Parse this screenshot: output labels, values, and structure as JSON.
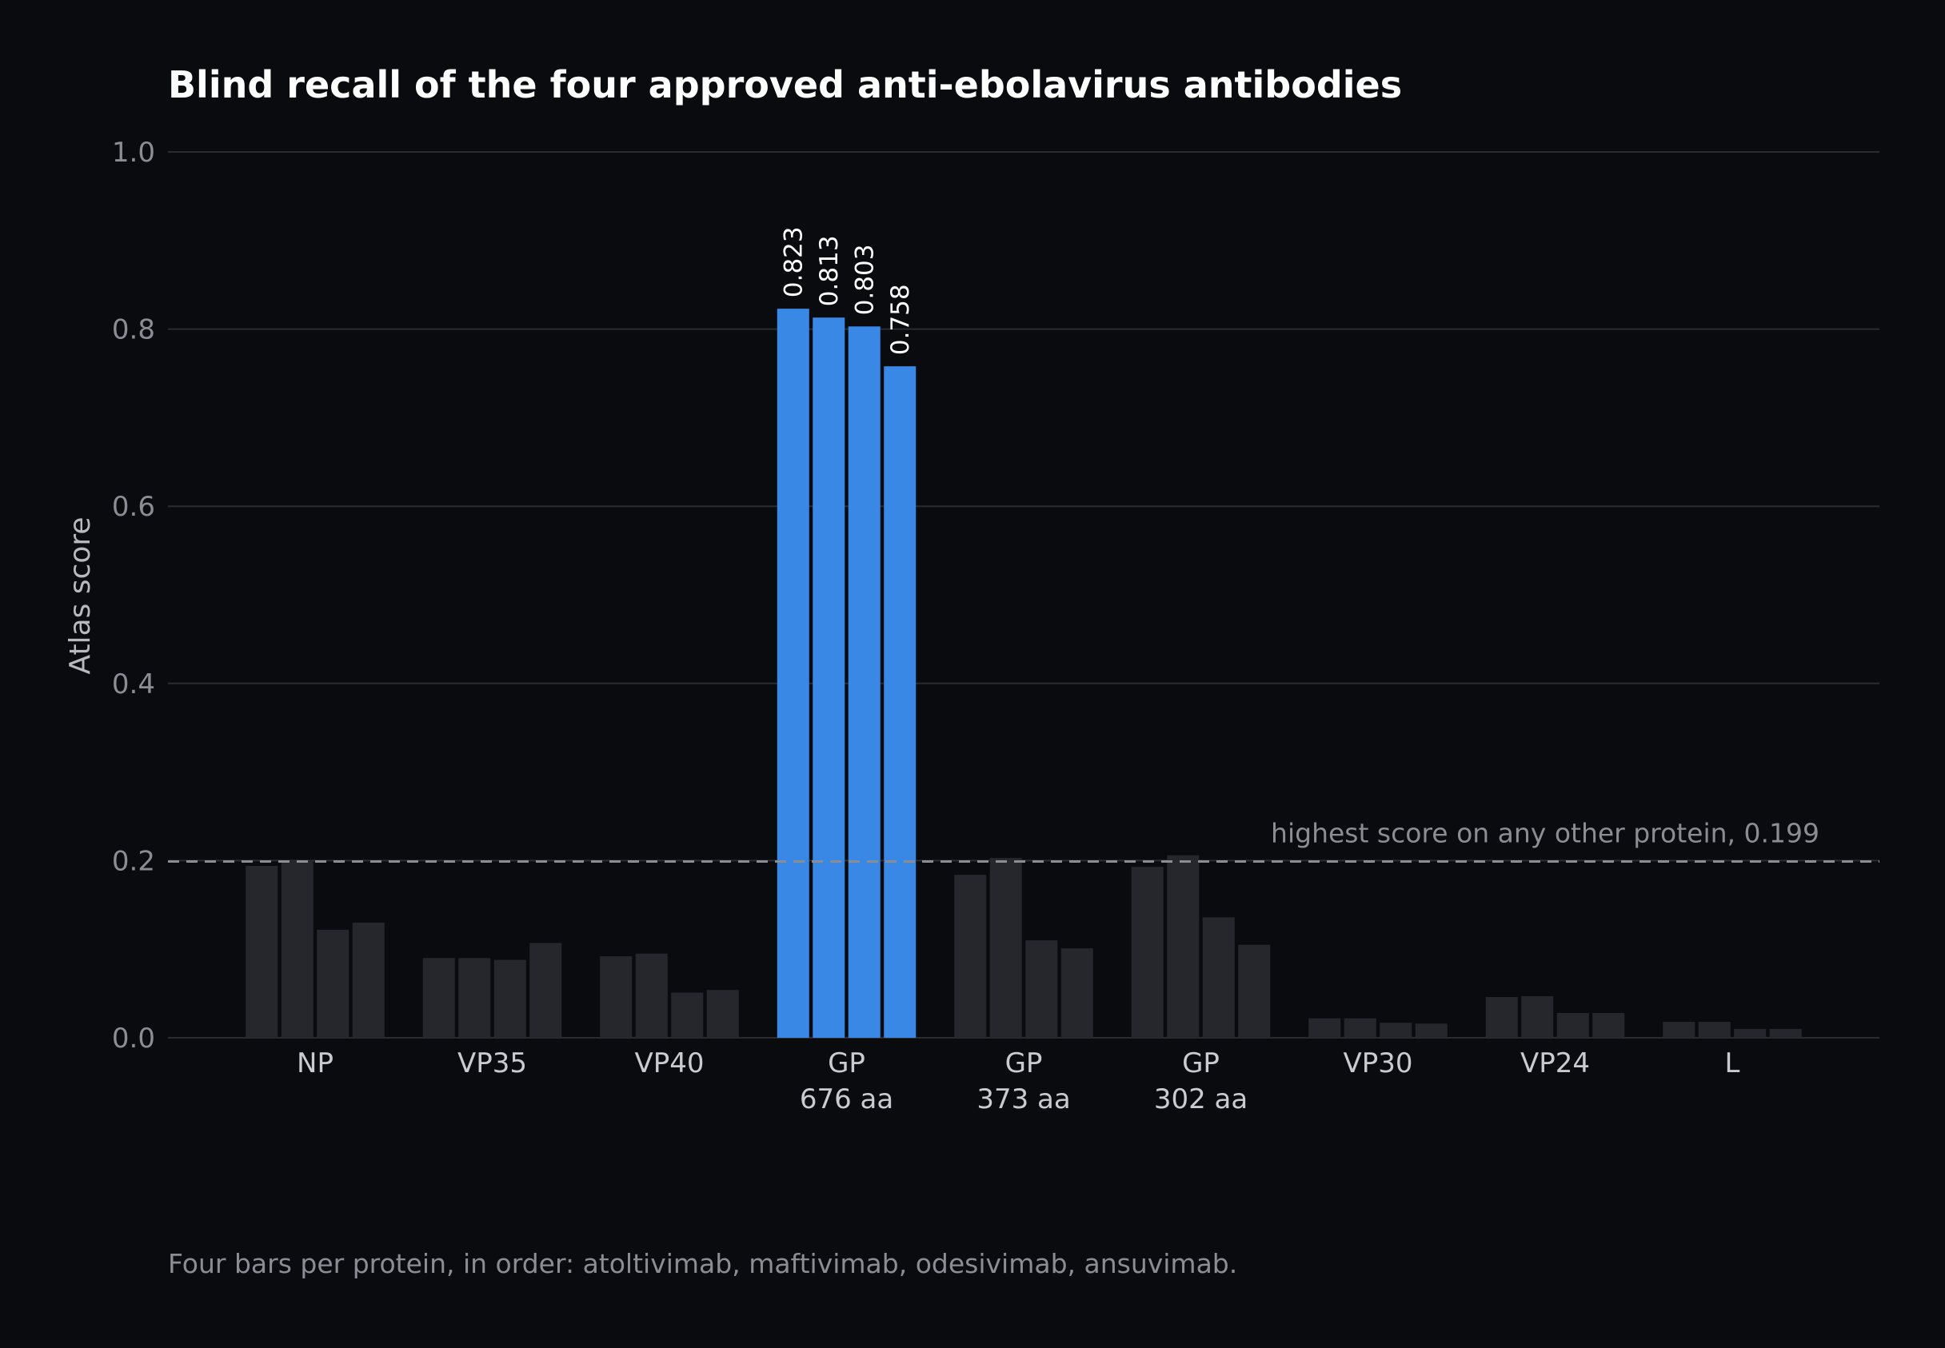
{
  "chart_data": {
    "type": "bar",
    "title": "Blind recall of the four approved anti-ebolavirus antibodies",
    "ylabel": "Atlas score",
    "ylim": [
      0,
      1.0
    ],
    "yticks": [
      "0.0",
      "0.2",
      "0.4",
      "0.6",
      "0.8",
      "1.0"
    ],
    "grid": true,
    "categories": [
      {
        "name": "NP",
        "sub": ""
      },
      {
        "name": "VP35",
        "sub": ""
      },
      {
        "name": "VP40",
        "sub": ""
      },
      {
        "name": "GP",
        "sub": "676 aa"
      },
      {
        "name": "GP",
        "sub": "373 aa"
      },
      {
        "name": "GP",
        "sub": "302 aa"
      },
      {
        "name": "VP30",
        "sub": ""
      },
      {
        "name": "VP24",
        "sub": ""
      },
      {
        "name": "L",
        "sub": ""
      }
    ],
    "series": [
      {
        "values": [
          0.194,
          0.09,
          0.092,
          0.823,
          0.184,
          0.193,
          0.022,
          0.046,
          0.018
        ]
      },
      {
        "values": [
          0.199,
          0.09,
          0.095,
          0.813,
          0.203,
          0.206,
          0.022,
          0.047,
          0.018
        ]
      },
      {
        "values": [
          0.122,
          0.088,
          0.051,
          0.803,
          0.11,
          0.136,
          0.017,
          0.028,
          0.01
        ]
      },
      {
        "values": [
          0.13,
          0.107,
          0.054,
          0.758,
          0.101,
          0.105,
          0.016,
          0.028,
          0.01
        ]
      }
    ],
    "highlight_category_index": 3,
    "highlight_labels": [
      "0.823",
      "0.813",
      "0.803",
      "0.758"
    ],
    "reference_line": {
      "value": 0.199,
      "label": "highest score on any other protein, 0.199"
    },
    "colors": {
      "highlight": "#3a88e5",
      "other": "#26272c"
    },
    "footnote": "Four bars per protein, in order: atoltivimab, maftivimab, odesivimab, ansuvimab."
  }
}
